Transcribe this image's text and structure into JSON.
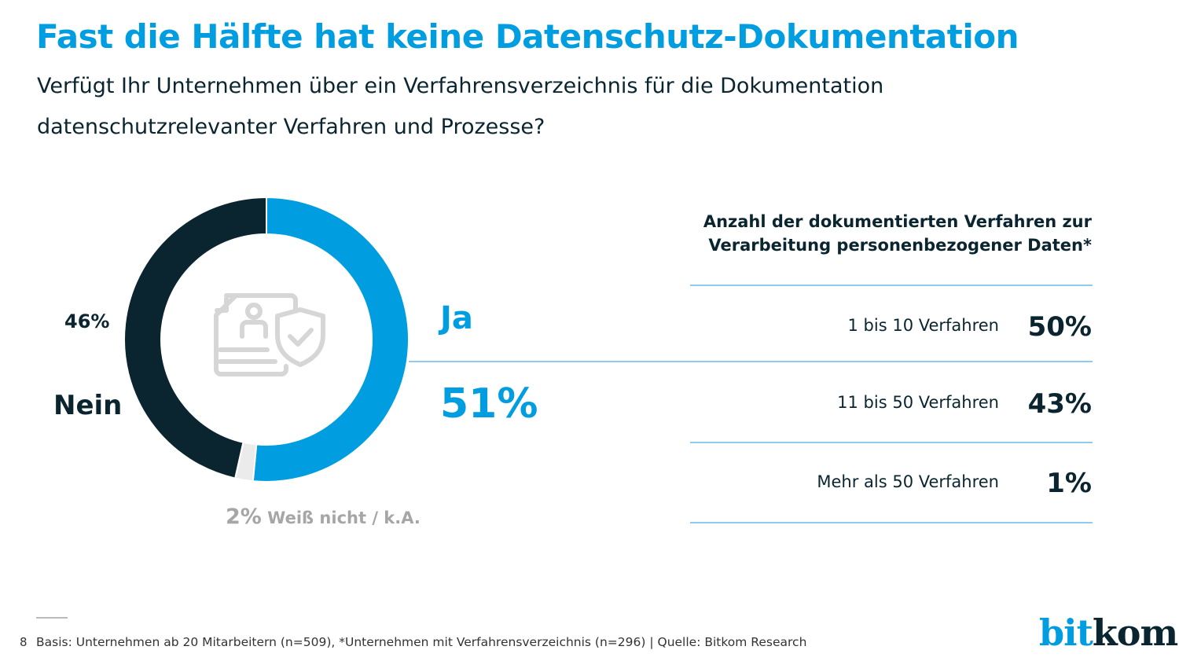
{
  "title": "Fast die Hälfte hat keine Datenschutz-Dokumentation",
  "subtitle": "Verfügt Ihr Unternehmen über ein Verfahrensverzeichnis für die Dokumentation datenschutzrelevanter Verfahren und Prozesse?",
  "colors": {
    "ja": "#009de0",
    "nein": "#0b2530",
    "unknown": "#ebebeb",
    "icon": "#d6d6d6"
  },
  "center_icon": "document-person-shield-check-icon",
  "chart_data": [
    {
      "type": "pie",
      "variant": "donut",
      "slices": [
        {
          "name": "Ja",
          "value": 51,
          "label": "51%",
          "color": "#009de0"
        },
        {
          "name": "Weiß nicht / k.A.",
          "value": 2,
          "label": "2%",
          "color": "#ebebeb"
        },
        {
          "name": "Nein",
          "value": 46,
          "label": "46%",
          "color": "#0b2530"
        }
      ]
    },
    {
      "type": "table",
      "title": "Anzahl der dokumentierten Verfahren zur Verarbeitung personenbezogener Daten*",
      "rows": [
        {
          "label": "1 bis 10 Verfahren",
          "value": "50%"
        },
        {
          "label": "11 bis 50 Verfahren",
          "value": "43%"
        },
        {
          "label": "Mehr als 50 Verfahren",
          "value": "1%"
        }
      ]
    }
  ],
  "footer": {
    "page": "8",
    "note": "Basis: Unternehmen ab 20 Mitarbeitern  (n=509), *Unternehmen mit Verfahrensverzeichnis (n=296) | Quelle: Bitkom Research",
    "logo_part1": "bit",
    "logo_part2": "kom"
  }
}
